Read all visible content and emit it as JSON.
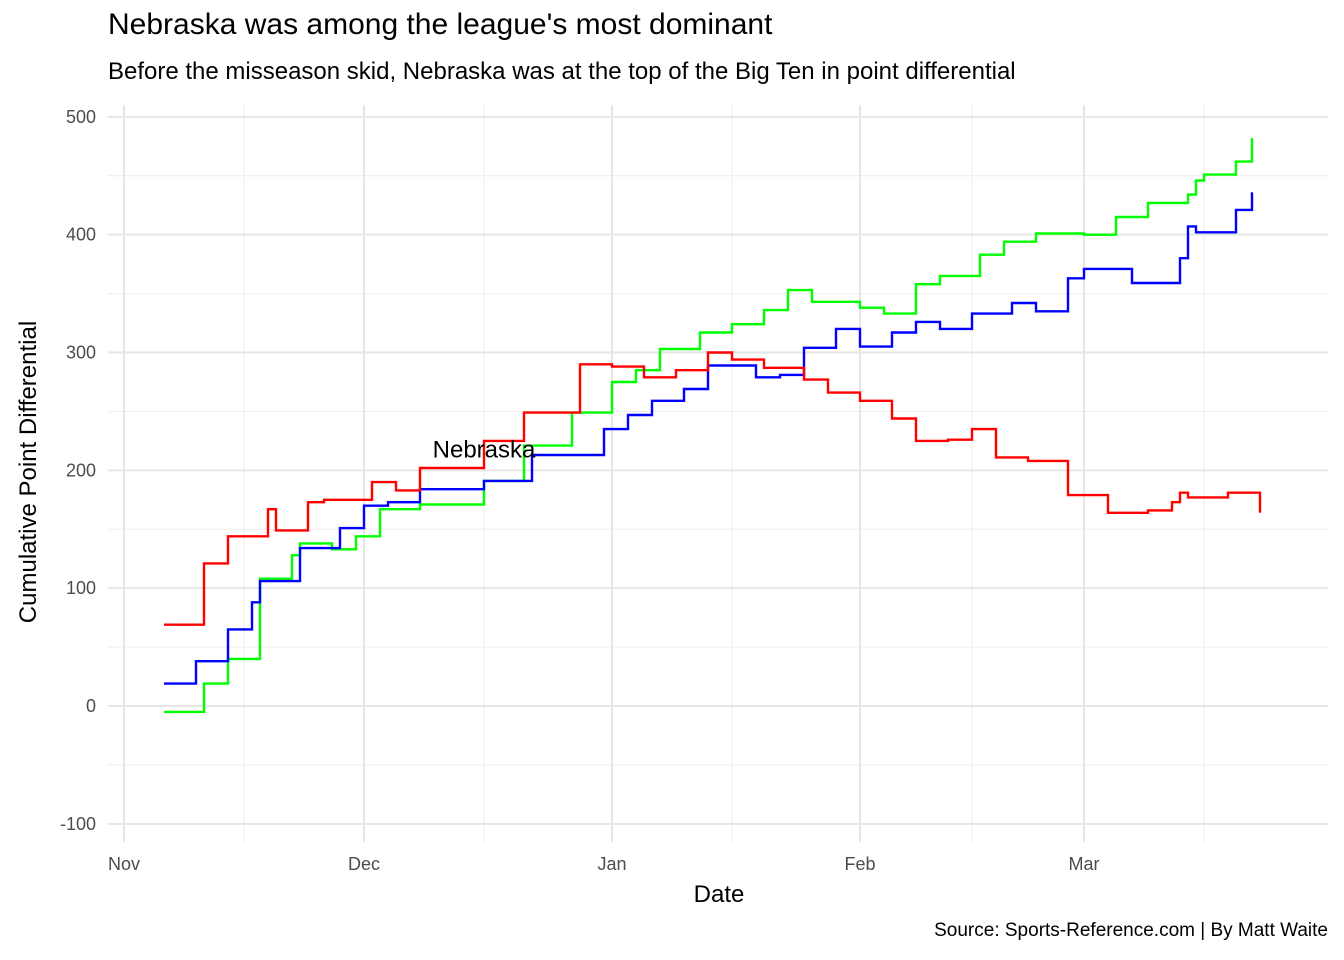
{
  "title": "Nebraska was among the league's most dominant",
  "subtitle": "Before the misseason skid, Nebraska was at the top of the Big Ten in point differential",
  "caption": "Source: Sports-Reference.com | By Matt Waite",
  "chart_data": {
    "type": "line",
    "step": true,
    "xlabel": "Date",
    "ylabel": "Cumulative Point Differential",
    "xlim": [
      "2018-10-31",
      "2019-03-28"
    ],
    "ylim": [
      -100,
      500
    ],
    "y_ticks": [
      -100,
      0,
      100,
      200,
      300,
      400,
      500
    ],
    "x_ticks": [
      {
        "label": "Nov",
        "date": "2018-11-01"
      },
      {
        "label": "Dec",
        "date": "2018-12-01"
      },
      {
        "label": "Jan",
        "date": "2019-01-01"
      },
      {
        "label": "Feb",
        "date": "2019-02-01"
      },
      {
        "label": "Mar",
        "date": "2019-03-01"
      }
    ],
    "x_minor_ticks": [
      "2018-11-16",
      "2018-12-16",
      "2019-01-16",
      "2019-02-15",
      "2019-03-16"
    ],
    "grid": true,
    "legend": "none",
    "annotations": [
      {
        "text": "Nebraska",
        "x": "2018-12-16",
        "y": 211
      }
    ],
    "series": [
      {
        "color": "#00ff00",
        "points": [
          [
            "2018-11-06",
            -5
          ],
          [
            "2018-11-11",
            19
          ],
          [
            "2018-11-14",
            40
          ],
          [
            "2018-11-18",
            108
          ],
          [
            "2018-11-22",
            128
          ],
          [
            "2018-11-23",
            138
          ],
          [
            "2018-11-27",
            133
          ],
          [
            "2018-11-30",
            144
          ],
          [
            "2018-12-03",
            167
          ],
          [
            "2018-12-08",
            171
          ],
          [
            "2018-12-16",
            191
          ],
          [
            "2018-12-21",
            221
          ],
          [
            "2018-12-27",
            249
          ],
          [
            "2019-01-01",
            275
          ],
          [
            "2019-01-04",
            285
          ],
          [
            "2019-01-07",
            303
          ],
          [
            "2019-01-12",
            317
          ],
          [
            "2019-01-16",
            324
          ],
          [
            "2019-01-20",
            336
          ],
          [
            "2019-01-23",
            353
          ],
          [
            "2019-01-26",
            343
          ],
          [
            "2019-02-01",
            338
          ],
          [
            "2019-02-04",
            333
          ],
          [
            "2019-02-08",
            358
          ],
          [
            "2019-02-11",
            365
          ],
          [
            "2019-02-16",
            383
          ],
          [
            "2019-02-19",
            394
          ],
          [
            "2019-02-23",
            401
          ],
          [
            "2019-03-01",
            400
          ],
          [
            "2019-03-05",
            415
          ],
          [
            "2019-03-09",
            427
          ],
          [
            "2019-03-14",
            434
          ],
          [
            "2019-03-15",
            446
          ],
          [
            "2019-03-16",
            451
          ],
          [
            "2019-03-20",
            462
          ],
          [
            "2019-03-22",
            481
          ]
        ]
      },
      {
        "color": "#0000ff",
        "points": [
          [
            "2018-11-06",
            19
          ],
          [
            "2018-11-10",
            38
          ],
          [
            "2018-11-14",
            65
          ],
          [
            "2018-11-17",
            88
          ],
          [
            "2018-11-18",
            106
          ],
          [
            "2018-11-23",
            134
          ],
          [
            "2018-11-28",
            151
          ],
          [
            "2018-12-01",
            170
          ],
          [
            "2018-12-04",
            173
          ],
          [
            "2018-12-08",
            184
          ],
          [
            "2018-12-16",
            191
          ],
          [
            "2018-12-22",
            213
          ],
          [
            "2018-12-31",
            235
          ],
          [
            "2019-01-03",
            247
          ],
          [
            "2019-01-06",
            259
          ],
          [
            "2019-01-10",
            269
          ],
          [
            "2019-01-13",
            289
          ],
          [
            "2019-01-19",
            279
          ],
          [
            "2019-01-22",
            281
          ],
          [
            "2019-01-25",
            304
          ],
          [
            "2019-01-29",
            320
          ],
          [
            "2019-02-01",
            305
          ],
          [
            "2019-02-05",
            317
          ],
          [
            "2019-02-08",
            326
          ],
          [
            "2019-02-11",
            320
          ],
          [
            "2019-02-15",
            333
          ],
          [
            "2019-02-20",
            342
          ],
          [
            "2019-02-23",
            335
          ],
          [
            "2019-02-27",
            363
          ],
          [
            "2019-03-01",
            371
          ],
          [
            "2019-03-07",
            359
          ],
          [
            "2019-03-13",
            380
          ],
          [
            "2019-03-14",
            407
          ],
          [
            "2019-03-15",
            402
          ],
          [
            "2019-03-20",
            421
          ],
          [
            "2019-03-22",
            435
          ]
        ]
      },
      {
        "color": "#ff0000",
        "points": [
          [
            "2018-11-06",
            69
          ],
          [
            "2018-11-11",
            121
          ],
          [
            "2018-11-14",
            144
          ],
          [
            "2018-11-19",
            167
          ],
          [
            "2018-11-20",
            149
          ],
          [
            "2018-11-24",
            173
          ],
          [
            "2018-11-26",
            175
          ],
          [
            "2018-12-02",
            190
          ],
          [
            "2018-12-05",
            183
          ],
          [
            "2018-12-08",
            202
          ],
          [
            "2018-12-16",
            225
          ],
          [
            "2018-12-21",
            249
          ],
          [
            "2018-12-28",
            290
          ],
          [
            "2019-01-01",
            288
          ],
          [
            "2019-01-05",
            279
          ],
          [
            "2019-01-09",
            285
          ],
          [
            "2019-01-13",
            300
          ],
          [
            "2019-01-16",
            294
          ],
          [
            "2019-01-20",
            287
          ],
          [
            "2019-01-25",
            277
          ],
          [
            "2019-01-28",
            266
          ],
          [
            "2019-02-01",
            259
          ],
          [
            "2019-02-05",
            244
          ],
          [
            "2019-02-08",
            225
          ],
          [
            "2019-02-12",
            226
          ],
          [
            "2019-02-15",
            235
          ],
          [
            "2019-02-18",
            211
          ],
          [
            "2019-02-22",
            208
          ],
          [
            "2019-02-27",
            179
          ],
          [
            "2019-03-04",
            164
          ],
          [
            "2019-03-09",
            166
          ],
          [
            "2019-03-12",
            173
          ],
          [
            "2019-03-13",
            181
          ],
          [
            "2019-03-14",
            177
          ],
          [
            "2019-03-19",
            181
          ],
          [
            "2019-03-23",
            165
          ]
        ]
      }
    ]
  }
}
